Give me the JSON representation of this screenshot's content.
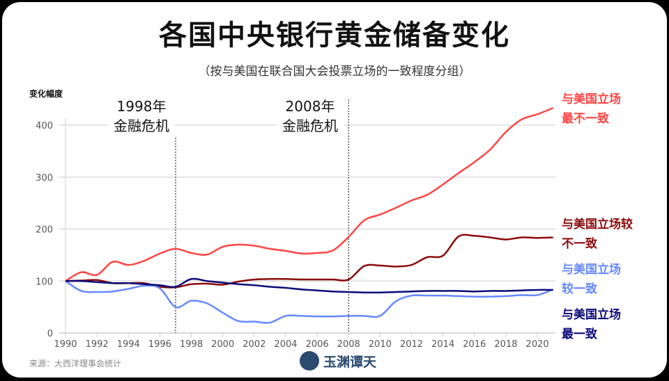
{
  "chart_data": {
    "type": "line",
    "title": "各国中央银行黄金储备变化",
    "subtitle": "（按与美国在联合国大会投票立场的一致程度分组）",
    "ylabel": "变化幅度",
    "xlabel": "",
    "xlim": [
      1990,
      2021
    ],
    "ylim": [
      0,
      430
    ],
    "yticks": [
      0,
      100,
      200,
      300,
      400
    ],
    "xticks": [
      1990,
      1992,
      1994,
      1996,
      1998,
      2000,
      2002,
      2004,
      2006,
      2008,
      2010,
      2012,
      2014,
      2016,
      2018,
      2020
    ],
    "grid": "horizontal",
    "x": [
      1990,
      1991,
      1992,
      1993,
      1994,
      1995,
      1996,
      1997,
      1998,
      1999,
      2000,
      2001,
      2002,
      2003,
      2004,
      2005,
      2006,
      2007,
      2008,
      2009,
      2010,
      2011,
      2012,
      2013,
      2014,
      2015,
      2016,
      2017,
      2018,
      2019,
      2020,
      2021
    ],
    "series": [
      {
        "name": "与美国立场最不一致",
        "color": "#ff4444",
        "values": [
          100,
          117,
          112,
          137,
          131,
          139,
          153,
          162,
          154,
          151,
          166,
          170,
          168,
          162,
          158,
          153,
          154,
          159,
          185,
          217,
          228,
          241,
          255,
          266,
          286,
          308,
          329,
          353,
          387,
          411,
          421,
          433
        ]
      },
      {
        "name": "与美国立场较不一致",
        "color": "#8b0a0a",
        "values": [
          100,
          101,
          102,
          96,
          96,
          96,
          89,
          88,
          94,
          95,
          93,
          99,
          103,
          104,
          104,
          103,
          103,
          103,
          103,
          129,
          130,
          128,
          131,
          146,
          149,
          186,
          187,
          184,
          180,
          184,
          183,
          184
        ]
      },
      {
        "name": "与美国立场较一致",
        "color": "#6688ff",
        "values": [
          100,
          81,
          79,
          80,
          85,
          91,
          86,
          50,
          62,
          57,
          39,
          23,
          22,
          20,
          33,
          33,
          32,
          32,
          33,
          33,
          33,
          61,
          72,
          72,
          72,
          71,
          70,
          70,
          71,
          73,
          73,
          84
        ]
      },
      {
        "name": "与美国立场最一致",
        "color": "#0a0a78",
        "values": [
          100,
          100,
          98,
          96,
          96,
          94,
          92,
          89,
          104,
          100,
          97,
          94,
          92,
          89,
          87,
          84,
          82,
          80,
          79,
          78,
          78,
          79,
          80,
          81,
          81,
          81,
          80,
          81,
          81,
          82,
          83,
          83
        ]
      }
    ],
    "series_label_lines": [
      [
        "与美国立场",
        "最不一致"
      ],
      [
        "与美国立场较",
        "不一致"
      ],
      [
        "与美国立场",
        "较一致"
      ],
      [
        "与美国立场",
        "最一致"
      ]
    ],
    "annotations": [
      {
        "x": 1997,
        "lines": [
          "1998年",
          "金融危机"
        ]
      },
      {
        "x": 2008,
        "lines": [
          "2008年",
          "金融危机"
        ]
      }
    ]
  },
  "footer": {
    "source": "来源：大西洋理事会统计",
    "logo_text": "玉渊谭天"
  }
}
